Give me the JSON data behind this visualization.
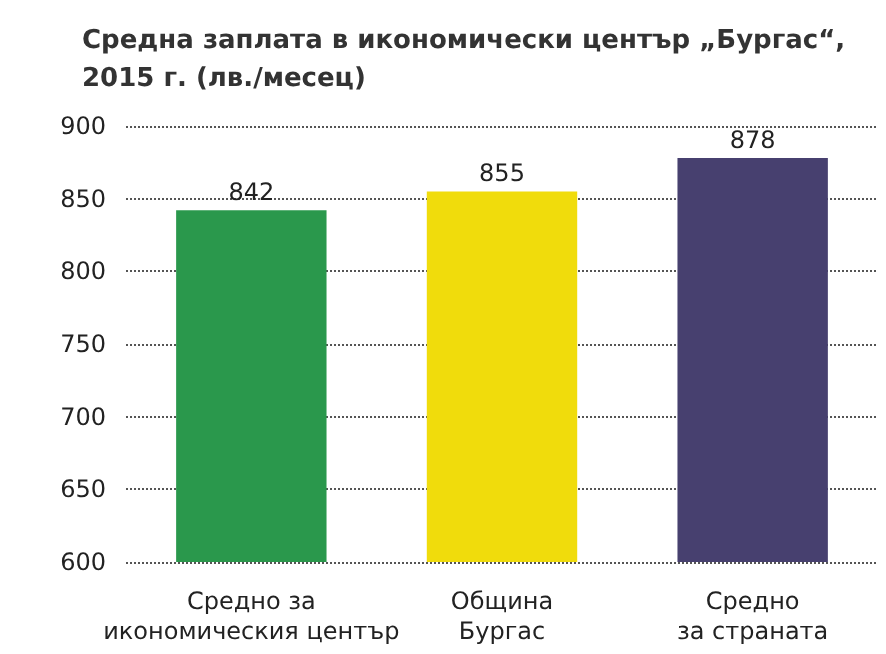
{
  "chart_data": {
    "type": "bar",
    "title": "Средна заплата в икономически център „Бургас“,\n2015 г. (лв./месец)",
    "categories": [
      "Средно за\nикономическия център",
      "Община\nБургас",
      "Средно\nза страната"
    ],
    "values": [
      842,
      855,
      878
    ],
    "colors": [
      "#2a984c",
      "#f0dc0c",
      "#47406f"
    ],
    "ylim": [
      600,
      900
    ],
    "yticks": [
      600,
      650,
      700,
      750,
      800,
      850,
      900
    ],
    "grid": "y",
    "data_labels": true
  }
}
